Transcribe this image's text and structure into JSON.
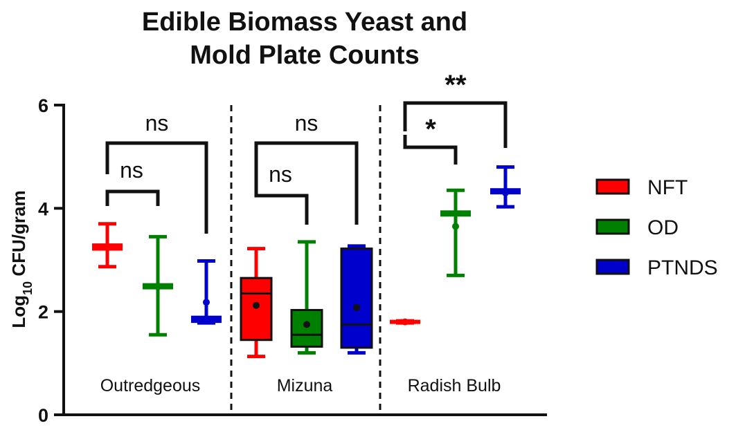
{
  "chart_data": {
    "type": "box",
    "title": [
      "Edible Biomass Yeast and",
      "Mold Plate  Counts"
    ],
    "ylabel": {
      "main": "Log",
      "sub": "10",
      "rest": " CFU/gram"
    },
    "ylim": [
      0,
      6
    ],
    "yticks": [
      0,
      2,
      4,
      6
    ],
    "groups": [
      "Outredgeous",
      "Mizuna",
      "Radish Bulb"
    ],
    "series": [
      {
        "name": "NFT",
        "color": "#ff0000"
      },
      {
        "name": "OD",
        "color": "#008000"
      },
      {
        "name": "PTNDS",
        "color": "#0000cc"
      }
    ],
    "boxes": [
      {
        "group": "Outredgeous",
        "series": "NFT",
        "min": 2.87,
        "q1": 3.18,
        "median": 3.25,
        "q3": 3.32,
        "max": 3.7,
        "mean": 3.25
      },
      {
        "group": "Outredgeous",
        "series": "OD",
        "min": 1.55,
        "q1": 2.43,
        "median": 2.48,
        "q3": 2.55,
        "max": 3.45,
        "mean": 2.48
      },
      {
        "group": "Outredgeous",
        "series": "PTNDS",
        "min": 1.78,
        "q1": 1.78,
        "median": 1.85,
        "q3": 1.92,
        "max": 2.98,
        "mean": 2.18
      },
      {
        "group": "Mizuna",
        "series": "NFT",
        "min": 1.13,
        "q1": 1.45,
        "median": 2.35,
        "q3": 2.65,
        "max": 3.22,
        "mean": 2.12
      },
      {
        "group": "Mizuna",
        "series": "OD",
        "min": 1.2,
        "q1": 1.32,
        "median": 1.55,
        "q3": 2.03,
        "max": 3.35,
        "mean": 1.75
      },
      {
        "group": "Mizuna",
        "series": "PTNDS",
        "min": 1.2,
        "q1": 1.3,
        "median": 1.75,
        "q3": 3.22,
        "max": 3.27,
        "mean": 2.08
      },
      {
        "group": "Radish Bulb",
        "series": "NFT",
        "min": 1.78,
        "q1": 1.78,
        "median": 1.8,
        "q3": 1.82,
        "max": 1.82,
        "mean": 1.8
      },
      {
        "group": "Radish Bulb",
        "series": "OD",
        "min": 2.7,
        "q1": 3.84,
        "median": 3.9,
        "q3": 3.96,
        "max": 4.35,
        "mean": 3.65
      },
      {
        "group": "Radish Bulb",
        "series": "PTNDS",
        "min": 4.03,
        "q1": 4.27,
        "median": 4.33,
        "q3": 4.39,
        "max": 4.8,
        "mean": 4.3
      }
    ],
    "comparisons": [
      {
        "group": "Outredgeous",
        "from": "NFT",
        "to": "OD",
        "label": "ns"
      },
      {
        "group": "Outredgeous",
        "from": "NFT",
        "to": "PTNDS",
        "label": "ns"
      },
      {
        "group": "Mizuna",
        "from": "NFT",
        "to": "OD",
        "label": "ns"
      },
      {
        "group": "Mizuna",
        "from": "NFT",
        "to": "PTNDS",
        "label": "ns"
      },
      {
        "group": "Radish Bulb",
        "from": "NFT",
        "to": "OD",
        "label": "*"
      },
      {
        "group": "Radish Bulb",
        "from": "NFT",
        "to": "PTNDS",
        "label": "**"
      }
    ],
    "legend_position": "right",
    "grid": false
  }
}
